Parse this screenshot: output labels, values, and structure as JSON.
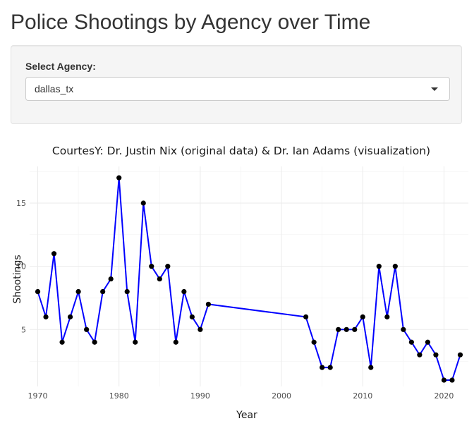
{
  "page": {
    "title": "Police Shootings by Agency over Time"
  },
  "agency_select": {
    "label": "Select Agency:",
    "value": "dallas_tx"
  },
  "chart_data": {
    "type": "line",
    "title": "CourtesY: Dr. Justin Nix (original data) & Dr. Ian Adams (visualization)",
    "xlabel": "Year",
    "ylabel": "Shootings",
    "xlim": [
      1969,
      2023
    ],
    "ylim": [
      0.5,
      17.9
    ],
    "x_ticks": [
      1970,
      1980,
      1990,
      2000,
      2010,
      2020
    ],
    "y_ticks": [
      5,
      10,
      15
    ],
    "grid": true,
    "line_color": "#0000ff",
    "point_color": "#000000",
    "x": [
      1970,
      1971,
      1972,
      1973,
      1974,
      1975,
      1976,
      1977,
      1978,
      1979,
      1980,
      1981,
      1982,
      1983,
      1984,
      1985,
      1986,
      1987,
      1988,
      1989,
      1990,
      1991,
      2003,
      2004,
      2005,
      2006,
      2007,
      2008,
      2009,
      2010,
      2011,
      2012,
      2013,
      2014,
      2015,
      2016,
      2017,
      2018,
      2019,
      2020,
      2021,
      2022
    ],
    "y": [
      8,
      6,
      11,
      4,
      6,
      8,
      5,
      4,
      8,
      9,
      17,
      8,
      4,
      15,
      10,
      9,
      10,
      4,
      8,
      6,
      5,
      7,
      6,
      4,
      2,
      2,
      5,
      5,
      5,
      6,
      2,
      10,
      6,
      10,
      5,
      4,
      3,
      4,
      3,
      1,
      1,
      3
    ]
  }
}
